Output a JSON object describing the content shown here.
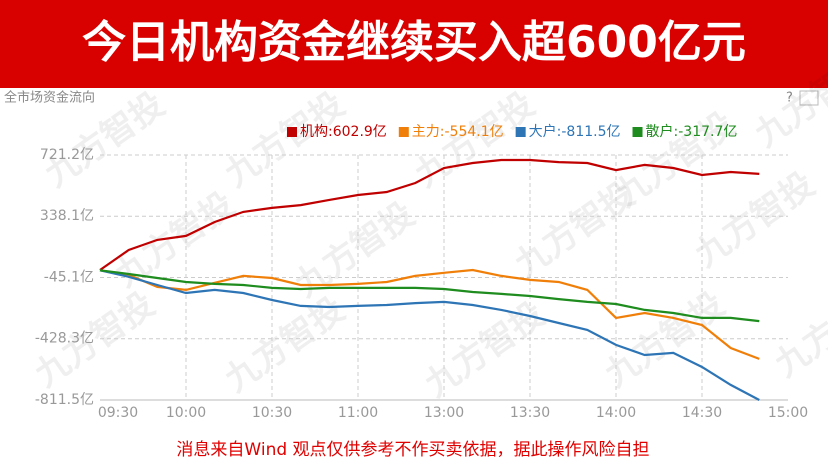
{
  "chart_data": {
    "type": "line",
    "title": "今日机构资金继续买入超600亿元",
    "subtitle": "全市场资金流向",
    "help_icon": "?",
    "watermark": "九方智投",
    "note": "消息来自Wind 观点仅供参考不作买卖依据，据此操作风险自担",
    "categories": [
      "09:30",
      null,
      null,
      "10:00",
      null,
      null,
      "10:30",
      null,
      null,
      "11:00",
      null,
      null,
      "13:00",
      null,
      null,
      "13:30",
      null,
      null,
      "14:00",
      null,
      null,
      "14:30",
      null,
      null,
      "15:00"
    ],
    "ylim": [
      -811.5,
      721.2
    ],
    "yticks": [
      {
        "value": 721.2,
        "label": "721.2亿"
      },
      {
        "value": 338.1,
        "label": "338.1亿"
      },
      {
        "value": -45.1,
        "label": "-45.1亿"
      },
      {
        "value": -428.3,
        "label": "-428.3亿"
      },
      {
        "value": -811.5,
        "label": "-811.5亿"
      }
    ],
    "grid": true,
    "legend": "top-right",
    "series": [
      {
        "name": "机构:602.9亿",
        "color": "#c00000",
        "values": [
          2,
          127,
          190,
          215,
          302,
          365,
          390,
          408,
          440,
          471,
          490,
          546,
          640,
          671,
          690,
          690,
          677,
          671,
          627,
          659,
          640,
          596,
          615,
          602.9,
          null
        ]
      },
      {
        "name": "主力:-554.1亿",
        "color": "#f07f09",
        "values": [
          0,
          -28,
          -104,
          -123,
          -78,
          -35,
          -48,
          -92,
          -92,
          -85,
          -73,
          -35,
          -16,
          2,
          -35,
          -60,
          -73,
          -123,
          -298,
          -267,
          -298,
          -342,
          -486,
          -554.1,
          null
        ]
      },
      {
        "name": "大户:-811.5亿",
        "color": "#2e75b6",
        "values": [
          0,
          -41,
          -92,
          -142,
          -123,
          -142,
          -186,
          -223,
          -230,
          -223,
          -217,
          -205,
          -198,
          -217,
          -248,
          -286,
          -330,
          -373,
          -467,
          -530,
          -517,
          -605,
          -717,
          -811.5,
          null
        ]
      },
      {
        "name": "散户:-317.7亿",
        "color": "#1e8c1e",
        "values": [
          0,
          -23,
          -48,
          -73,
          -85,
          -92,
          -110,
          -117,
          -110,
          -110,
          -110,
          -110,
          -117,
          -136,
          -148,
          -161,
          -180,
          -198,
          -211,
          -248,
          -267,
          -298,
          -298,
          -317.7,
          null
        ]
      }
    ]
  }
}
